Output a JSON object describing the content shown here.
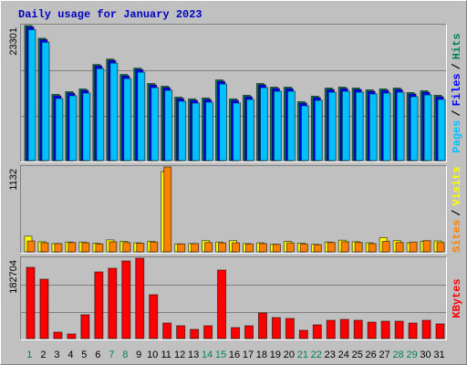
{
  "chart_data": [
    {
      "type": "bar",
      "title": "Daily usage for January 2023",
      "ylim": [
        0,
        23301
      ],
      "yticks": [
        23301
      ],
      "grid_lines": [
        7767,
        15534
      ],
      "legend_separator": "/",
      "series": [
        {
          "name": "Hits",
          "color": "#00805c",
          "values": [
            23301,
            21114,
            11417,
            11886,
            12356,
            16578,
            17517,
            14858,
            15953,
            13294,
            12825,
            10948,
            10635,
            10792,
            13920,
            10635,
            11261,
            13294,
            12668,
            12668,
            10166,
            11104,
            12512,
            12668,
            12512,
            12199,
            12356,
            12512,
            11730,
            12043,
            11261
          ]
        },
        {
          "name": "Files",
          "color": "#0000ff",
          "values": [
            23051,
            20864,
            11167,
            11636,
            12106,
            16328,
            17267,
            14608,
            15703,
            13044,
            12575,
            10698,
            10385,
            10542,
            13670,
            10385,
            11011,
            13044,
            12418,
            12418,
            9916,
            10854,
            12262,
            12418,
            12262,
            11949,
            12106,
            12262,
            11480,
            11793,
            11011
          ]
        },
        {
          "name": "Pages",
          "color": "#00c0ff",
          "values": [
            22601,
            20414,
            10717,
            11186,
            11656,
            15878,
            16817,
            14158,
            15253,
            12594,
            12125,
            10248,
            9935,
            10092,
            13220,
            9935,
            10561,
            12594,
            11968,
            11968,
            9466,
            10404,
            11812,
            11968,
            11812,
            11499,
            11656,
            11812,
            11030,
            11343,
            10561
          ]
        }
      ]
    },
    {
      "type": "bar",
      "ylim": [
        0,
        1132
      ],
      "yticks": [
        1132
      ],
      "legend_separator": "/",
      "series": [
        {
          "name": "Visits",
          "color": "#ffff00",
          "values": [
            209,
            135,
            110,
            130,
            130,
            115,
            160,
            140,
            120,
            140,
            1070,
            105,
            110,
            150,
            130,
            150,
            110,
            120,
            100,
            140,
            115,
            100,
            130,
            155,
            135,
            120,
            190,
            150,
            120,
            140,
            145
          ]
        },
        {
          "name": "Sites",
          "color": "#ff8000",
          "values": [
            145,
            120,
            110,
            125,
            120,
            105,
            135,
            125,
            115,
            130,
            1132,
            105,
            110,
            125,
            120,
            120,
            105,
            110,
            100,
            120,
            105,
            95,
            125,
            135,
            125,
            110,
            140,
            125,
            130,
            150,
            125
          ]
        }
      ]
    },
    {
      "type": "bar",
      "ylim": [
        0,
        182704
      ],
      "yticks": [
        182704
      ],
      "grid_lines": [
        60901,
        121803
      ],
      "categories": [
        "1",
        "2",
        "3",
        "4",
        "5",
        "6",
        "7",
        "8",
        "9",
        "10",
        "11",
        "12",
        "13",
        "14",
        "15",
        "16",
        "17",
        "18",
        "19",
        "20",
        "21",
        "22",
        "23",
        "24",
        "25",
        "26",
        "27",
        "28",
        "29",
        "30",
        "31"
      ],
      "category_colors": [
        "#00805c",
        "#000000",
        "#000000",
        "#000000",
        "#000000",
        "#000000",
        "#00805c",
        "#00805c",
        "#000000",
        "#000000",
        "#000000",
        "#000000",
        "#000000",
        "#00805c",
        "#00805c",
        "#000000",
        "#000000",
        "#000000",
        "#000000",
        "#000000",
        "#00805c",
        "#00805c",
        "#000000",
        "#000000",
        "#000000",
        "#000000",
        "#000000",
        "#00805c",
        "#00805c",
        "#000000",
        "#000000"
      ],
      "series": [
        {
          "name": "KBytes",
          "color": "#ff0000",
          "values": [
            161928,
            134940,
            14532,
            10380,
            53976,
            151548,
            159852,
            176460,
            182704,
            99648,
            35292,
            29064,
            20760,
            29064,
            155700,
            24912,
            29064,
            58128,
            47748,
            45672,
            18684,
            31140,
            41520,
            43596,
            41520,
            37368,
            39444,
            39444,
            35292,
            41520,
            33216
          ]
        }
      ]
    }
  ]
}
